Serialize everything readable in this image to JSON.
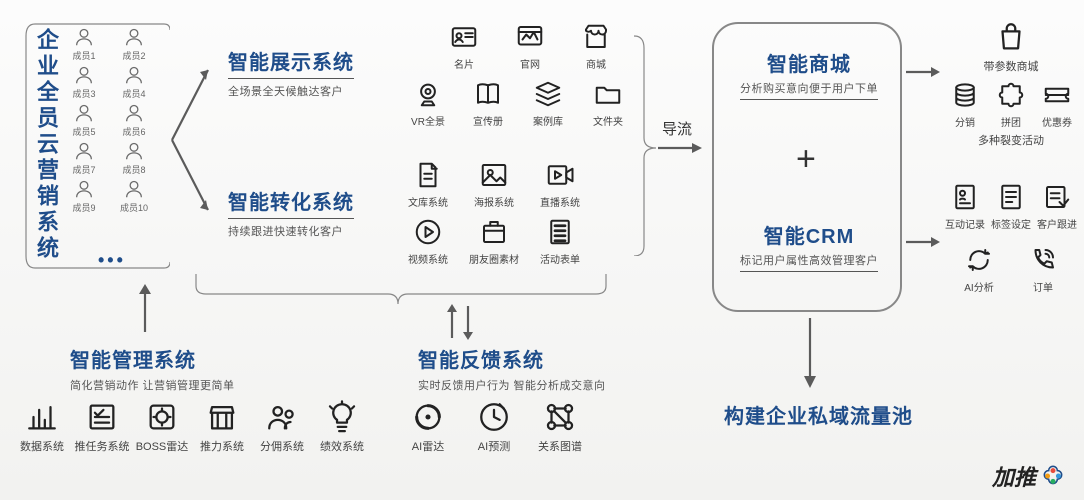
{
  "colors": {
    "title": "#1f4d8a",
    "text": "#444",
    "icon": "#222",
    "line": "#5b5b5b"
  },
  "leftTitle": "企业全员云营销系统",
  "members": [
    {
      "l": "成员1"
    },
    {
      "l": "成员2"
    },
    {
      "l": "成员3"
    },
    {
      "l": "成员4"
    },
    {
      "l": "成员5"
    },
    {
      "l": "成员6"
    },
    {
      "l": "成员7"
    },
    {
      "l": "成员8"
    },
    {
      "l": "成员9"
    },
    {
      "l": "成员10"
    }
  ],
  "display": {
    "title": "智能展示系统",
    "sub": "全场景全天候触达客户",
    "icons": [
      {
        "l": "名片",
        "g": "card"
      },
      {
        "l": "官网",
        "g": "web"
      },
      {
        "l": "商城",
        "g": "shop"
      },
      {
        "l": "VR全景",
        "g": "vr"
      },
      {
        "l": "宣传册",
        "g": "book"
      },
      {
        "l": "案例库",
        "g": "stack"
      },
      {
        "l": "文件夹",
        "g": "folder"
      }
    ]
  },
  "convert": {
    "title": "智能转化系统",
    "sub": "持续跟进快速转化客户",
    "icons": [
      {
        "l": "文库系统",
        "g": "doc"
      },
      {
        "l": "海报系统",
        "g": "image"
      },
      {
        "l": "直播系统",
        "g": "live"
      },
      {
        "l": "视频系统",
        "g": "play"
      },
      {
        "l": "朋友圈素材",
        "g": "box"
      },
      {
        "l": "活动表单",
        "g": "form"
      }
    ]
  },
  "flow": "导流",
  "mall": {
    "title": "智能商城",
    "sub": "分析购买意向便于用户下单"
  },
  "crm": {
    "title": "智能CRM",
    "sub": "标记用户属性高效管理客户"
  },
  "manage": {
    "title": "智能管理系统",
    "sub": "简化营销动作 让营销管理更简单",
    "icons": [
      {
        "l": "数据系统",
        "g": "chart"
      },
      {
        "l": "推任务系统",
        "g": "task"
      },
      {
        "l": "BOSS雷达",
        "g": "radar"
      },
      {
        "l": "推力系统",
        "g": "shopstand"
      },
      {
        "l": "分佣系统",
        "g": "people"
      },
      {
        "l": "绩效系统",
        "g": "bulb"
      }
    ]
  },
  "feedback": {
    "title": "智能反馈系统",
    "sub": "实时反馈用户行为 智能分析成交意向",
    "icons": [
      {
        "l": "AI雷达",
        "g": "spin"
      },
      {
        "l": "AI预测",
        "g": "clock"
      },
      {
        "l": "关系图谱",
        "g": "graph"
      }
    ]
  },
  "rightIcons": [
    {
      "l": "带参数商城",
      "g": "bag"
    },
    {
      "l": "分销",
      "g": "coins"
    },
    {
      "l": "拼团",
      "g": "puzzle"
    },
    {
      "l": "优惠券",
      "g": "coupon"
    },
    {
      "l": "多种裂变活动",
      "g": ""
    },
    {
      "l": "互动记录",
      "g": "note"
    },
    {
      "l": "标签设定",
      "g": "tag"
    },
    {
      "l": "客户跟进",
      "g": "check"
    },
    {
      "l": "AI分析",
      "g": "cycle"
    },
    {
      "l": "订单",
      "g": "phone"
    }
  ],
  "bottomRight": "构建企业私域流量池",
  "brand": "加推"
}
